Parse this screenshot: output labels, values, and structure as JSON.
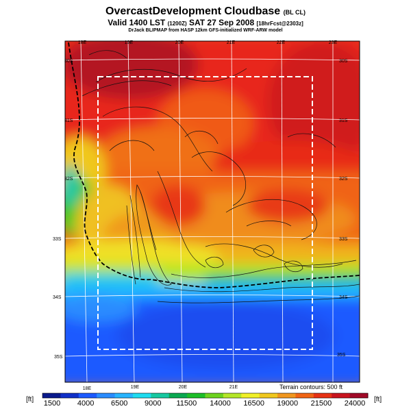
{
  "header": {
    "title": "OvercastDevelopment Cloudbase",
    "title_tag": "(BL CL)",
    "valid_line": "Valid 1400 LST",
    "valid_utc": "(1200Z)",
    "valid_date": "SAT 27 Sep 2008",
    "forecast_tag": "[18hrFcst@2303z]",
    "credit": "DrJack BLIPMAP from HASP 12km GFS-initialized WRF-ARW model"
  },
  "map": {
    "lon_labels_top": [
      "18E",
      "19E",
      "20E",
      "21E",
      "22E",
      "23E"
    ],
    "lon_labels_bottom": [
      "18E",
      "19E",
      "20E",
      "21E"
    ],
    "lat_labels_left": [
      "30S",
      "31S",
      "32S",
      "33S",
      "34S",
      "35S"
    ],
    "lat_labels_right": [
      "30S",
      "31S",
      "32S",
      "33S",
      "34S",
      "35S"
    ],
    "terrain_note": "Terrain contours: 500 ft"
  },
  "colorbar": {
    "unit_left": "[ft]",
    "unit_right": "[ft]",
    "tick_labels": [
      "1500",
      "4000",
      "6500",
      "9000",
      "11500",
      "14000",
      "16500",
      "19000",
      "21500",
      "24000"
    ],
    "colors": [
      "#0a1a8c",
      "#1030c8",
      "#1c5aff",
      "#2a8cff",
      "#28b4ff",
      "#1edcf0",
      "#16c8a0",
      "#0aa850",
      "#1cbe28",
      "#6cd21e",
      "#b4e628",
      "#f0f028",
      "#f0c81e",
      "#f0961e",
      "#f06414",
      "#e63214",
      "#c8141e",
      "#a00a28"
    ]
  }
}
